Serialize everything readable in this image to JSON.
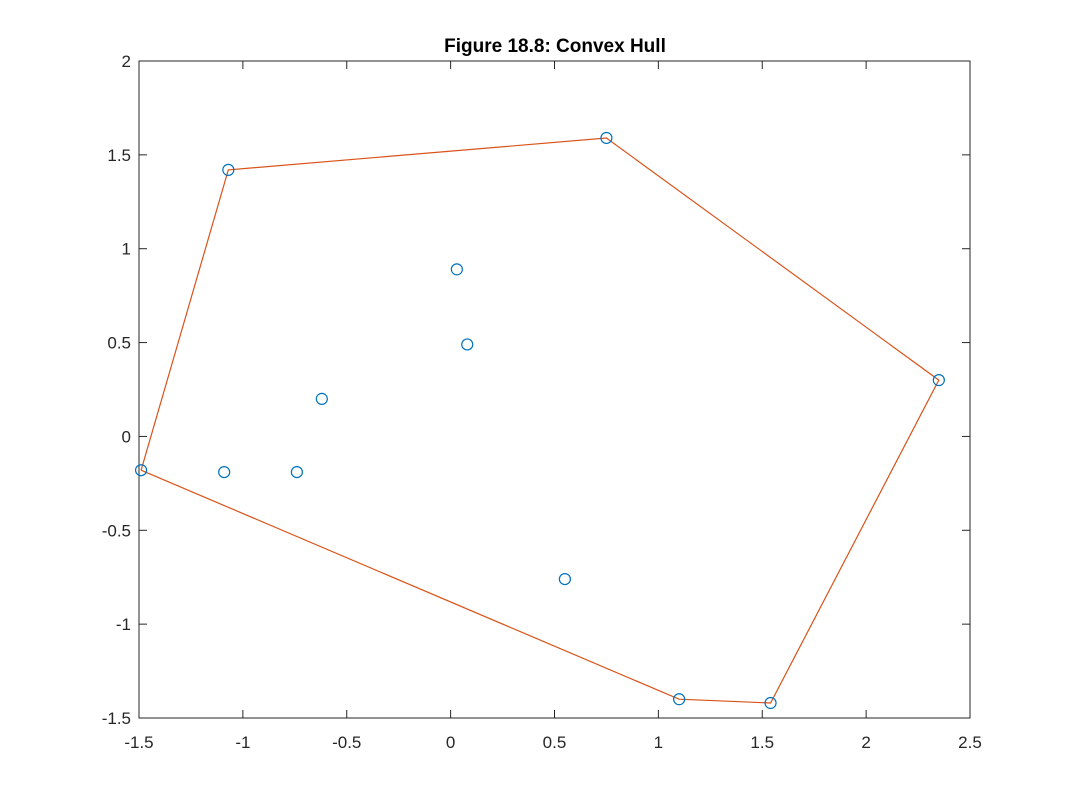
{
  "chart_data": {
    "type": "scatter",
    "title": "Figure 18.8: Convex Hull",
    "xlabel": "",
    "ylabel": "",
    "xlim": [
      -1.5,
      2.5
    ],
    "ylim": [
      -1.5,
      2
    ],
    "xticks": [
      -1.5,
      -1,
      -0.5,
      0,
      0.5,
      1,
      1.5,
      2,
      2.5
    ],
    "xtick_labels": [
      "-1.5",
      "-1",
      "-0.5",
      "0",
      "0.5",
      "1",
      "1.5",
      "2",
      "2.5"
    ],
    "yticks": [
      -1.5,
      -1,
      -0.5,
      0,
      0.5,
      1,
      1.5,
      2
    ],
    "ytick_labels": [
      "-1.5",
      "-1",
      "-0.5",
      "0",
      "0.5",
      "1",
      "1.5",
      "2"
    ],
    "grid": false,
    "legend": "none",
    "series": [
      {
        "type": "scatter",
        "marker": "circle",
        "color": "#0072BD",
        "points": [
          {
            "x": -1.49,
            "y": -0.18
          },
          {
            "x": -1.07,
            "y": 1.42
          },
          {
            "x": -1.09,
            "y": -0.19
          },
          {
            "x": -0.74,
            "y": -0.19
          },
          {
            "x": -0.62,
            "y": 0.2
          },
          {
            "x": 0.03,
            "y": 0.89
          },
          {
            "x": 0.08,
            "y": 0.49
          },
          {
            "x": 0.55,
            "y": -0.76
          },
          {
            "x": 0.75,
            "y": 1.59
          },
          {
            "x": 1.1,
            "y": -1.4
          },
          {
            "x": 1.54,
            "y": -1.42
          },
          {
            "x": 2.35,
            "y": 0.3
          }
        ]
      },
      {
        "type": "line",
        "color": "#D95319",
        "points": [
          {
            "x": -1.49,
            "y": -0.18
          },
          {
            "x": 1.1,
            "y": -1.4
          },
          {
            "x": 1.54,
            "y": -1.42
          },
          {
            "x": 2.35,
            "y": 0.3
          },
          {
            "x": 0.75,
            "y": 1.59
          },
          {
            "x": -1.07,
            "y": 1.42
          },
          {
            "x": -1.49,
            "y": -0.18
          }
        ]
      }
    ]
  }
}
